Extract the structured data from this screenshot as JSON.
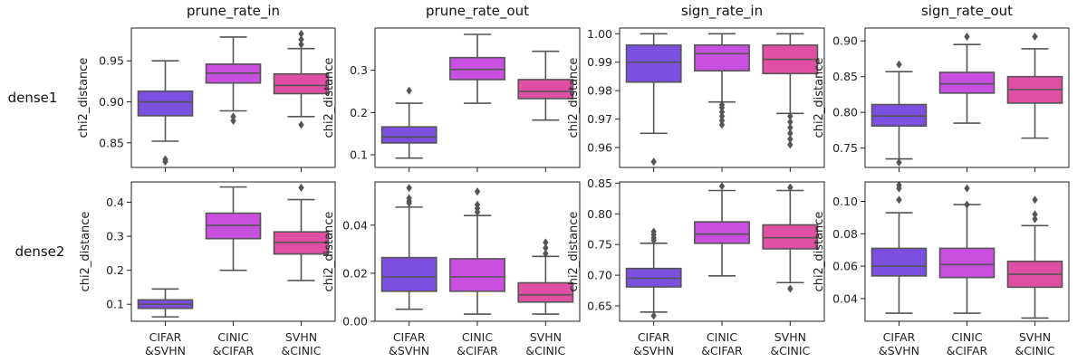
{
  "chart_data": {
    "type": "box",
    "categories": [
      "CIFAR\n&SVHN",
      "CINIC\n&CIFAR",
      "SVHN\n&CINIC"
    ],
    "colors": [
      "#7b4fe0",
      "#c94fe0",
      "#e04fa3"
    ],
    "columns": [
      "prune_rate_in",
      "prune_rate_out",
      "sign_rate_in",
      "sign_rate_out"
    ],
    "rows": [
      "dense1",
      "dense2"
    ],
    "ylabel": "chi2_distance",
    "panels": [
      {
        "row": 0,
        "col": 0,
        "ylim": [
          0.82,
          0.99
        ],
        "yticks": [
          0.85,
          0.9,
          0.95
        ],
        "tick_decimals": 2,
        "boxes": [
          {
            "whislo": 0.852,
            "q1": 0.883,
            "med": 0.9,
            "q3": 0.913,
            "whishi": 0.95,
            "fliers": [
              0.83,
              0.827
            ]
          },
          {
            "whislo": 0.889,
            "q1": 0.923,
            "med": 0.935,
            "q3": 0.946,
            "whishi": 0.979,
            "fliers": [
              0.882,
              0.877
            ]
          },
          {
            "whislo": 0.882,
            "q1": 0.91,
            "med": 0.92,
            "q3": 0.934,
            "whishi": 0.965,
            "fliers": [
              0.983,
              0.976,
              0.97,
              0.872
            ]
          }
        ]
      },
      {
        "row": 0,
        "col": 1,
        "ylim": [
          0.07,
          0.4
        ],
        "yticks": [
          0.1,
          0.2,
          0.3
        ],
        "tick_decimals": 1,
        "boxes": [
          {
            "whislo": 0.092,
            "q1": 0.128,
            "med": 0.142,
            "q3": 0.166,
            "whishi": 0.222,
            "fliers": [
              0.252
            ]
          },
          {
            "whislo": 0.222,
            "q1": 0.278,
            "med": 0.302,
            "q3": 0.33,
            "whishi": 0.385,
            "fliers": []
          },
          {
            "whislo": 0.182,
            "q1": 0.233,
            "med": 0.25,
            "q3": 0.278,
            "whishi": 0.345,
            "fliers": []
          }
        ]
      },
      {
        "row": 0,
        "col": 2,
        "ylim": [
          0.953,
          1.002
        ],
        "yticks": [
          0.96,
          0.97,
          0.98,
          0.99,
          1.0
        ],
        "tick_decimals": 2,
        "boxes": [
          {
            "whislo": 0.965,
            "q1": 0.983,
            "med": 0.99,
            "q3": 0.996,
            "whishi": 1.0,
            "fliers": [
              0.955
            ]
          },
          {
            "whislo": 0.976,
            "q1": 0.987,
            "med": 0.993,
            "q3": 0.996,
            "whishi": 1.0,
            "fliers": [
              0.975,
              0.974,
              0.9725,
              0.971,
              0.9695,
              0.968
            ]
          },
          {
            "whislo": 0.972,
            "q1": 0.986,
            "med": 0.991,
            "q3": 0.996,
            "whishi": 1.0,
            "fliers": [
              0.971,
              0.969,
              0.967,
              0.965,
              0.963,
              0.961
            ]
          }
        ]
      },
      {
        "row": 0,
        "col": 3,
        "ylim": [
          0.723,
          0.918
        ],
        "yticks": [
          0.75,
          0.8,
          0.85,
          0.9
        ],
        "tick_decimals": 2,
        "boxes": [
          {
            "whislo": 0.735,
            "q1": 0.781,
            "med": 0.795,
            "q3": 0.811,
            "whishi": 0.857,
            "fliers": [
              0.867,
              0.73
            ]
          },
          {
            "whislo": 0.785,
            "q1": 0.827,
            "med": 0.84,
            "q3": 0.856,
            "whishi": 0.895,
            "fliers": [
              0.906
            ]
          },
          {
            "whislo": 0.764,
            "q1": 0.813,
            "med": 0.832,
            "q3": 0.85,
            "whishi": 0.889,
            "fliers": [
              0.906
            ]
          }
        ]
      },
      {
        "row": 1,
        "col": 0,
        "ylim": [
          0.05,
          0.46
        ],
        "yticks": [
          0.1,
          0.2,
          0.3,
          0.4
        ],
        "tick_decimals": 1,
        "boxes": [
          {
            "whislo": 0.063,
            "q1": 0.088,
            "med": 0.1,
            "q3": 0.113,
            "whishi": 0.145,
            "fliers": []
          },
          {
            "whislo": 0.2,
            "q1": 0.293,
            "med": 0.332,
            "q3": 0.368,
            "whishi": 0.445,
            "fliers": []
          },
          {
            "whislo": 0.17,
            "q1": 0.248,
            "med": 0.282,
            "q3": 0.313,
            "whishi": 0.408,
            "fliers": [
              0.443
            ]
          }
        ]
      },
      {
        "row": 1,
        "col": 1,
        "ylim": [
          0.0,
          0.058
        ],
        "yticks": [
          0.0,
          0.02,
          0.04
        ],
        "tick_decimals": 2,
        "boxes": [
          {
            "whislo": 0.005,
            "q1": 0.0125,
            "med": 0.0185,
            "q3": 0.0265,
            "whishi": 0.0475,
            "fliers": [
              0.0555,
              0.0512,
              0.05,
              0.0492
            ]
          },
          {
            "whislo": 0.003,
            "q1": 0.0125,
            "med": 0.0185,
            "q3": 0.026,
            "whishi": 0.044,
            "fliers": [
              0.054,
              0.0485,
              0.047,
              0.0455
            ]
          },
          {
            "whislo": 0.003,
            "q1": 0.008,
            "med": 0.011,
            "q3": 0.016,
            "whishi": 0.027,
            "fliers": [
              0.0328,
              0.0305,
              0.0282
            ]
          }
        ]
      },
      {
        "row": 1,
        "col": 2,
        "ylim": [
          0.625,
          0.852
        ],
        "yticks": [
          0.65,
          0.7,
          0.75,
          0.8,
          0.85
        ],
        "tick_decimals": 2,
        "boxes": [
          {
            "whislo": 0.64,
            "q1": 0.681,
            "med": 0.695,
            "q3": 0.711,
            "whishi": 0.752,
            "fliers": [
              0.771,
              0.766,
              0.761,
              0.757,
              0.634
            ]
          },
          {
            "whislo": 0.699,
            "q1": 0.752,
            "med": 0.767,
            "q3": 0.787,
            "whishi": 0.838,
            "fliers": [
              0.845
            ]
          },
          {
            "whislo": 0.688,
            "q1": 0.743,
            "med": 0.761,
            "q3": 0.782,
            "whishi": 0.838,
            "fliers": [
              0.843,
              0.678
            ]
          }
        ]
      },
      {
        "row": 1,
        "col": 3,
        "ylim": [
          0.026,
          0.112
        ],
        "yticks": [
          0.04,
          0.06,
          0.08,
          0.1
        ],
        "tick_decimals": 2,
        "boxes": [
          {
            "whislo": 0.031,
            "q1": 0.054,
            "med": 0.06,
            "q3": 0.071,
            "whishi": 0.093,
            "fliers": [
              0.11,
              0.108,
              0.101
            ]
          },
          {
            "whislo": 0.031,
            "q1": 0.053,
            "med": 0.061,
            "q3": 0.071,
            "whishi": 0.098,
            "fliers": [
              0.108,
              0.098
            ]
          },
          {
            "whislo": 0.028,
            "q1": 0.047,
            "med": 0.055,
            "q3": 0.063,
            "whishi": 0.085,
            "fliers": [
              0.101,
              0.092,
              0.089
            ]
          }
        ]
      }
    ]
  }
}
